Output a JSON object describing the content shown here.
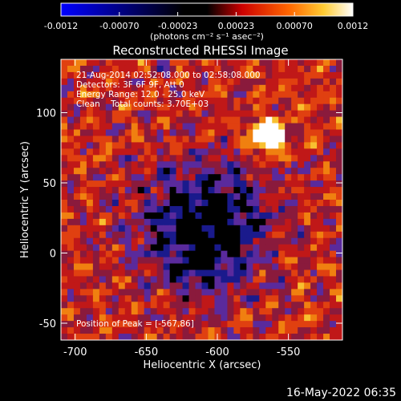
{
  "chart_data": {
    "type": "heatmap",
    "title": "Reconstructed RHESSI Image",
    "xlabel": "Heliocentric X (arcsec)",
    "ylabel": "Heliocentric Y (arcsec)",
    "xlim": [
      -710,
      -512
    ],
    "ylim": [
      -62,
      138
    ],
    "xticks": [
      -700,
      -650,
      -600,
      -550
    ],
    "yticks": [
      -50,
      0,
      50,
      100
    ],
    "colorbar": {
      "ticks": [
        "-0.0012",
        "-0.00070",
        "-0.00023",
        "0.00023",
        "0.00070",
        "0.0012"
      ],
      "range": [
        -0.0012,
        0.0012
      ],
      "units": "(photons cm⁻² s⁻¹ asec⁻²)"
    },
    "annotations": [
      "21-Aug-2014 02:52:08.000 to 02:58:08.000",
      "Detectors: 3F 6F 9F, Att 0",
      "Energy Range: 12.0 - 25.0 keV",
      "Clean    Total counts: 3.70E+03"
    ],
    "peak_label": "Position of Peak = [-567,86]",
    "peak": [
      -567,
      86
    ],
    "colormap": [
      "#000000",
      "#1a1a8c",
      "#5a2a9c",
      "#8a1a3c",
      "#c01818",
      "#e04010",
      "#f08010",
      "#f8c030",
      "#ffffff"
    ]
  },
  "timestamp": "16-May-2022 06:35"
}
